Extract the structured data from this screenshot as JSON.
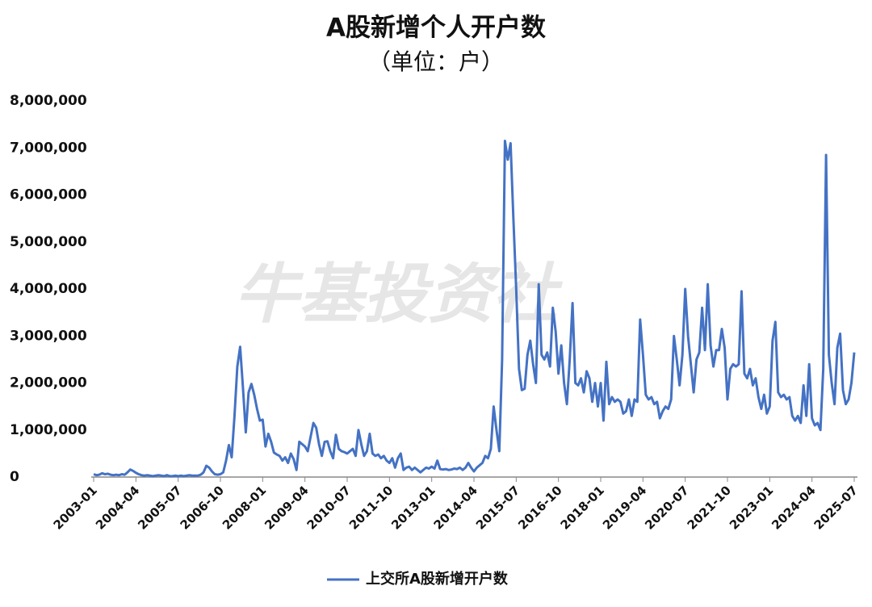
{
  "chart_data": {
    "type": "line",
    "title": "A股新增个人开户数",
    "subtitle": "（单位：户）",
    "watermark": "牛基投资社",
    "categories": [
      "2003-01",
      null,
      null,
      null,
      null,
      null,
      null,
      null,
      null,
      null,
      null,
      null,
      null,
      null,
      null,
      "2004-04",
      null,
      null,
      null,
      null,
      null,
      null,
      null,
      null,
      null,
      null,
      null,
      null,
      null,
      null,
      "2005-07",
      null,
      null,
      null,
      null,
      null,
      null,
      null,
      null,
      null,
      null,
      null,
      null,
      null,
      null,
      "2006-10",
      null,
      null,
      null,
      null,
      null,
      null,
      null,
      null,
      null,
      null,
      null,
      null,
      null,
      null,
      "2008-01",
      null,
      null,
      null,
      null,
      null,
      null,
      null,
      null,
      null,
      null,
      null,
      null,
      null,
      null,
      "2009-04",
      null,
      null,
      null,
      null,
      null,
      null,
      null,
      null,
      null,
      null,
      null,
      null,
      null,
      null,
      "2010-07",
      null,
      null,
      null,
      null,
      null,
      null,
      null,
      null,
      null,
      null,
      null,
      null,
      null,
      null,
      "2011-10",
      null,
      null,
      null,
      null,
      null,
      null,
      null,
      null,
      null,
      null,
      null,
      null,
      null,
      null,
      "2013-01",
      null,
      null,
      null,
      null,
      null,
      null,
      null,
      null,
      null,
      null,
      null,
      null,
      null,
      null,
      "2014-04",
      null,
      null,
      null,
      null,
      null,
      null,
      null,
      null,
      null,
      null,
      null,
      null,
      null,
      null,
      "2015-07",
      null,
      null,
      null,
      null,
      null,
      null,
      null,
      null,
      null,
      null,
      null,
      null,
      null,
      null,
      "2016-10",
      null,
      null,
      null,
      null,
      null,
      null,
      null,
      null,
      null,
      null,
      null,
      null,
      null,
      null,
      "2018-01",
      null,
      null,
      null,
      null,
      null,
      null,
      null,
      null,
      null,
      null,
      null,
      null,
      null,
      null,
      "2019-04",
      null,
      null,
      null,
      null,
      null,
      null,
      null,
      null,
      null,
      null,
      null,
      null,
      null,
      null,
      "2020-07",
      null,
      null,
      null,
      null,
      null,
      null,
      null,
      null,
      null,
      null,
      null,
      null,
      null,
      null,
      "2021-10",
      null,
      null,
      null,
      null,
      null,
      null,
      null,
      null,
      null,
      null,
      null,
      null,
      null,
      null,
      "2023-01",
      null,
      null,
      null,
      null,
      null,
      null,
      null,
      null,
      null,
      null,
      null,
      null,
      null,
      null,
      "2024-04",
      null,
      null,
      null,
      null,
      null,
      null,
      null,
      null,
      null,
      null,
      null,
      null,
      null,
      null,
      "2025-07"
    ],
    "series": [
      {
        "name": "上交所A股新增开户数",
        "color": "#4472c4",
        "values": [
          60000,
          40000,
          50000,
          80000,
          60000,
          70000,
          50000,
          40000,
          50000,
          40000,
          60000,
          50000,
          100000,
          160000,
          130000,
          90000,
          60000,
          40000,
          30000,
          40000,
          30000,
          20000,
          30000,
          40000,
          30000,
          20000,
          40000,
          20000,
          20000,
          30000,
          20000,
          30000,
          20000,
          30000,
          40000,
          30000,
          30000,
          30000,
          50000,
          100000,
          240000,
          200000,
          120000,
          60000,
          50000,
          60000,
          100000,
          350000,
          680000,
          420000,
          1300000,
          2350000,
          2770000,
          1900000,
          950000,
          1800000,
          1980000,
          1750000,
          1450000,
          1200000,
          1220000,
          650000,
          920000,
          750000,
          520000,
          480000,
          450000,
          350000,
          420000,
          300000,
          500000,
          380000,
          150000,
          750000,
          700000,
          650000,
          550000,
          850000,
          1150000,
          1050000,
          700000,
          450000,
          750000,
          760000,
          550000,
          400000,
          900000,
          600000,
          550000,
          530000,
          500000,
          550000,
          600000,
          450000,
          1000000,
          700000,
          450000,
          550000,
          920000,
          500000,
          450000,
          480000,
          400000,
          450000,
          350000,
          300000,
          400000,
          200000,
          400000,
          500000,
          150000,
          200000,
          220000,
          150000,
          200000,
          150000,
          100000,
          150000,
          200000,
          180000,
          220000,
          180000,
          350000,
          170000,
          160000,
          170000,
          150000,
          160000,
          180000,
          170000,
          200000,
          150000,
          200000,
          300000,
          200000,
          120000,
          200000,
          250000,
          300000,
          450000,
          400000,
          600000,
          1500000,
          1000000,
          550000,
          2500000,
          7150000,
          6750000,
          7100000,
          5500000,
          4000000,
          2300000,
          1850000,
          1880000,
          2600000,
          2900000,
          2400000,
          2000000,
          4100000,
          2600000,
          2500000,
          2650000,
          2350000,
          3600000,
          3100000,
          2200000,
          2800000,
          2000000,
          1550000,
          2500000,
          3700000,
          2000000,
          1950000,
          2100000,
          1800000,
          2250000,
          2100000,
          1600000,
          2000000,
          1500000,
          2000000,
          1200000,
          2450000,
          1550000,
          1700000,
          1600000,
          1650000,
          1600000,
          1350000,
          1400000,
          1650000,
          1300000,
          1650000,
          1600000,
          3350000,
          2600000,
          1750000,
          1650000,
          1700000,
          1550000,
          1600000,
          1250000,
          1400000,
          1500000,
          1450000,
          1650000,
          3000000,
          2500000,
          1950000,
          2600000,
          4000000,
          3000000,
          2400000,
          1800000,
          2500000,
          2650000,
          3600000,
          2700000,
          4100000,
          2800000,
          2350000,
          2700000,
          2700000,
          3150000,
          2750000,
          1650000,
          2300000,
          2400000,
          2350000,
          2400000,
          3950000,
          2200000,
          2100000,
          2300000,
          1950000,
          2100000,
          1700000,
          1450000,
          1750000,
          1350000,
          1500000,
          2900000,
          3300000,
          1800000,
          1700000,
          1750000,
          1650000,
          1700000,
          1300000,
          1200000,
          1300000,
          1150000,
          1950000,
          1300000,
          2400000,
          1250000,
          1100000,
          1150000,
          1000000,
          2300000,
          6850000,
          2600000,
          2000000,
          1550000,
          2750000,
          3050000,
          1850000,
          1550000,
          1650000,
          2000000,
          2650000
        ]
      }
    ],
    "ylim": [
      0,
      8000000
    ],
    "yticks": [
      0,
      {
        "value": 1000000,
        "label": "1,000,000"
      },
      {
        "value": 2000000,
        "label": "2,000,000"
      },
      {
        "value": 3000000,
        "label": "3,000,000"
      },
      {
        "value": 4000000,
        "label": "4,000,000"
      },
      {
        "value": 5000000,
        "label": "5,000,000"
      },
      {
        "value": 6000000,
        "label": "6,000,000"
      },
      {
        "value": 7000000,
        "label": "7,000,000"
      },
      {
        "value": 8000000,
        "label": "8,000,000"
      }
    ],
    "grid": false,
    "legend": "bottom"
  }
}
